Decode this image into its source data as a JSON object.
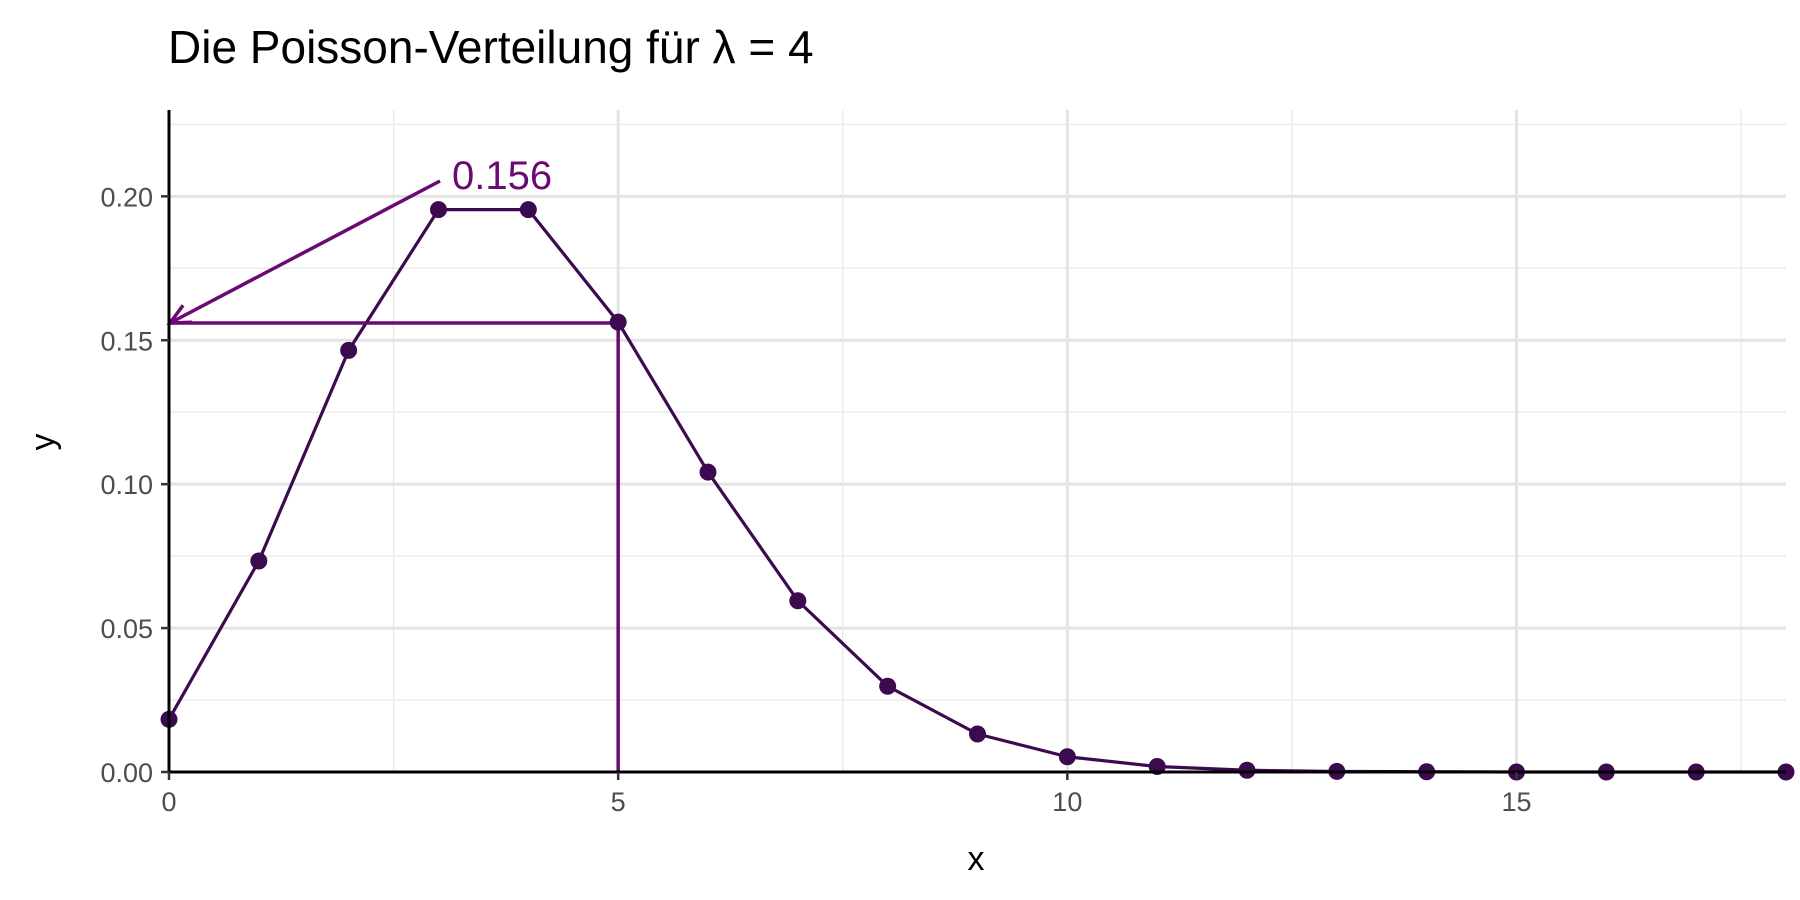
{
  "chart_data": {
    "type": "line",
    "title": "Die Poisson-Verteilung für λ = 4",
    "xlabel": "x",
    "ylabel": "y",
    "xlim": [
      0,
      18
    ],
    "ylim": [
      0,
      0.23
    ],
    "x_ticks": [
      0,
      5,
      10,
      15
    ],
    "x_tick_labels": [
      "0",
      "5",
      "10",
      "15"
    ],
    "y_ticks": [
      0,
      0.05,
      0.1,
      0.15,
      0.2
    ],
    "y_tick_labels": [
      "0.00",
      "0.05",
      "0.10",
      "0.15",
      "0.20"
    ],
    "x_minor_ticks": [
      2.5,
      7.5,
      12.5,
      17.5
    ],
    "y_minor_ticks": [
      0.025,
      0.075,
      0.125,
      0.175,
      0.225
    ],
    "grid": true,
    "series": [
      {
        "x": [
          0,
          1,
          2,
          3,
          4,
          5,
          6,
          7,
          8,
          9,
          10,
          11,
          12,
          13,
          14,
          15,
          16,
          17,
          18
        ],
        "values": [
          0.0183,
          0.0733,
          0.1465,
          0.1954,
          0.1954,
          0.1563,
          0.1042,
          0.0595,
          0.0298,
          0.0132,
          0.0053,
          0.0019,
          0.0006,
          0.0002,
          0.0001,
          0.0,
          0.0,
          0.0,
          0.0
        ],
        "color": "#3b0a4f"
      }
    ],
    "annotation": {
      "label": "0.156",
      "x": 5,
      "y": 0.156,
      "color": "#6a0a72"
    }
  }
}
